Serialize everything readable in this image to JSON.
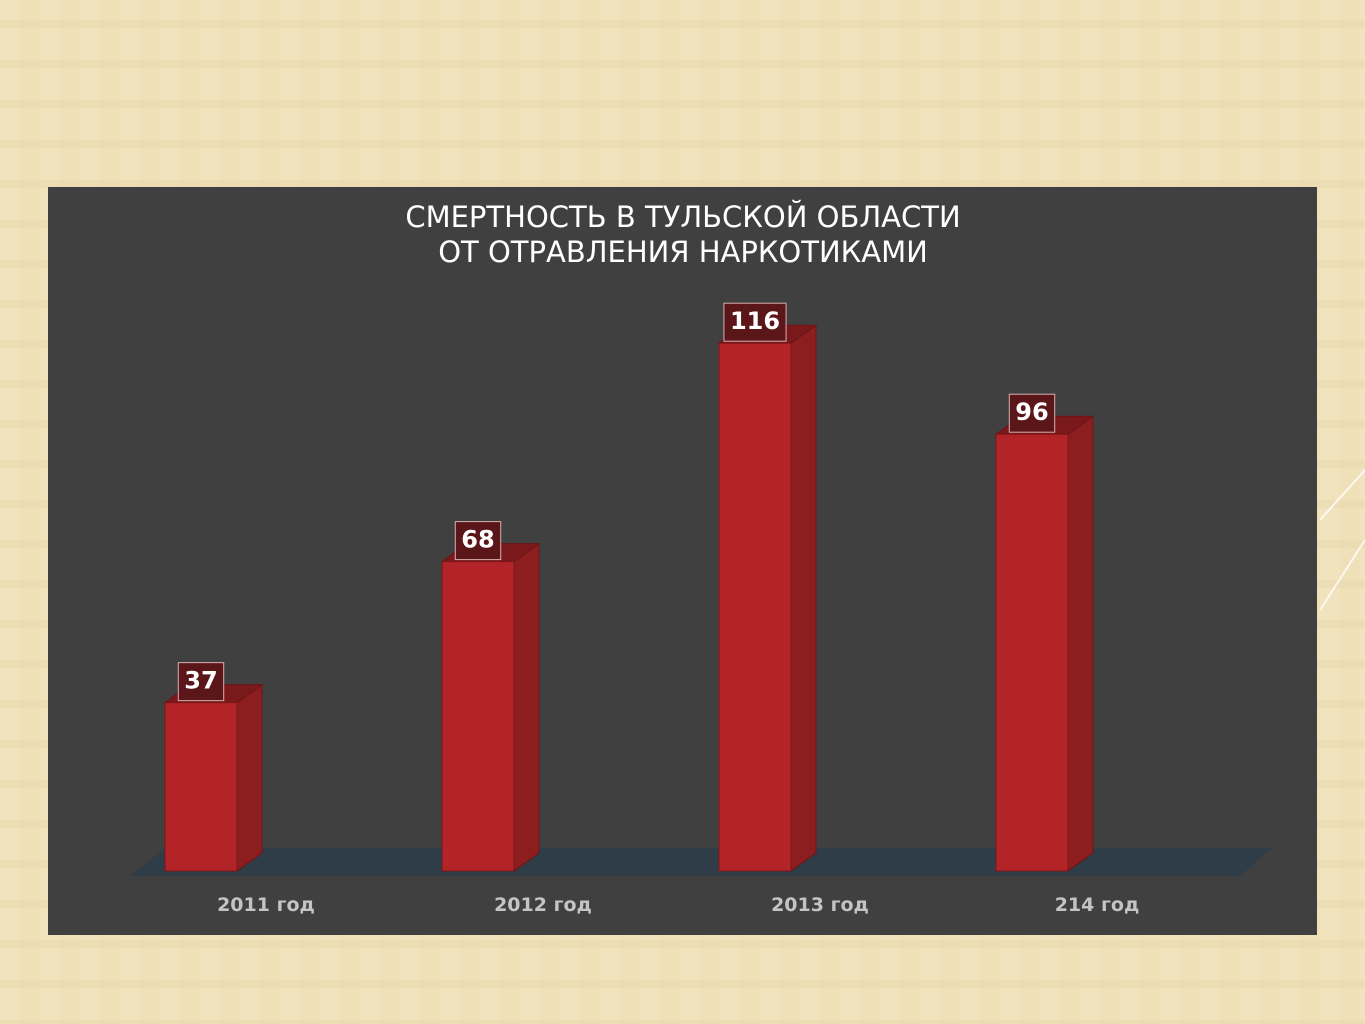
{
  "chart_data": {
    "type": "bar3d",
    "title": [
      "СМЕРТНОСТЬ В ТУЛЬСКОЙ ОБЛАСТИ",
      "ОТ ОТРАВЛЕНИЯ НАРКОТИКАМИ"
    ],
    "categories": [
      "2011 год",
      "2012 год",
      "2013 год",
      "214 год"
    ],
    "values": [
      37,
      68,
      116,
      96
    ],
    "color": "#b22428"
  }
}
